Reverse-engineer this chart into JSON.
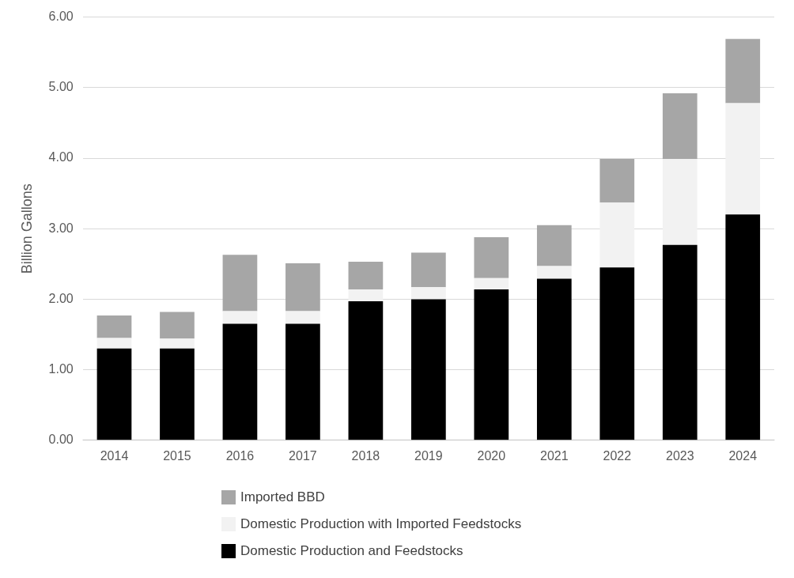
{
  "chart_data": {
    "type": "bar",
    "stacked": true,
    "categories": [
      "2014",
      "2015",
      "2016",
      "2017",
      "2018",
      "2019",
      "2020",
      "2021",
      "2022",
      "2023",
      "2024"
    ],
    "series": [
      {
        "name": "Domestic Production and Feedstocks",
        "color": "#000000",
        "values": [
          1.3,
          1.3,
          1.65,
          1.65,
          1.97,
          2.0,
          2.14,
          2.29,
          2.45,
          2.77,
          3.2
        ]
      },
      {
        "name": "Domestic Production with Imported Feedstocks",
        "color": "#f2f2f2",
        "values": [
          0.15,
          0.14,
          0.18,
          0.18,
          0.17,
          0.17,
          0.16,
          0.18,
          0.92,
          1.22,
          1.58
        ]
      },
      {
        "name": "Imported BBD",
        "color": "#a6a6a6",
        "values": [
          0.32,
          0.38,
          0.8,
          0.68,
          0.39,
          0.49,
          0.58,
          0.58,
          0.62,
          0.93,
          0.91
        ]
      }
    ],
    "ylabel": "Billion Gallons",
    "ylim": [
      0,
      6
    ],
    "yticks": [
      {
        "value": 0,
        "label": "0.00"
      },
      {
        "value": 1,
        "label": "1.00"
      },
      {
        "value": 2,
        "label": "2.00"
      },
      {
        "value": 3,
        "label": "3.00"
      },
      {
        "value": 4,
        "label": "4.00"
      },
      {
        "value": 5,
        "label": "5.00"
      },
      {
        "value": 6,
        "label": "6.00"
      }
    ],
    "grid": "y",
    "legend": "bottom"
  }
}
